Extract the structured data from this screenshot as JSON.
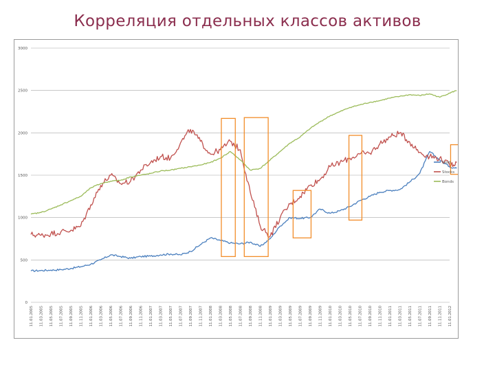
{
  "title": "Корреляция отдельных классов активов",
  "colors": {
    "gold": "#4a7fbe",
    "stocks": "#c0504d",
    "bonds": "#9bbb59",
    "highlight": "#f28c28",
    "grid": "#a6a6a6",
    "title": "#8b2e4e"
  },
  "chart_data": {
    "type": "line",
    "ylim": [
      0,
      3000
    ],
    "y_ticks": [
      "0",
      "500",
      "1000",
      "1500",
      "2000",
      "2500",
      "3000"
    ],
    "y_tick_values": [
      0,
      500,
      1000,
      1500,
      2000,
      2500,
      3000
    ],
    "grid": "horizontal",
    "legend_position": "right",
    "x_tick_labels": [
      "11.01.2005",
      "11.03.2005",
      "11.05.2005",
      "11.07.2005",
      "11.09.2005",
      "11.11.2005",
      "11.01.2006",
      "11.03.2006",
      "11.05.2006",
      "11.07.2006",
      "11.09.2006",
      "11.11.2006",
      "11.01.2007",
      "11.03.2007",
      "11.05.2007",
      "11.07.2007",
      "11.09.2007",
      "11.11.2007",
      "11.01.2008",
      "11.03.2008",
      "11.05.2008",
      "11.07.2008",
      "11.09.2008",
      "11.11.2008",
      "11.01.2009",
      "11.03.2009",
      "11.05.2009",
      "11.07.2009",
      "11.09.2009",
      "11.11.2009",
      "11.01.2010",
      "11.03.2010",
      "11.05.2010",
      "11.07.2010",
      "11.09.2010",
      "11.11.2010",
      "11.01.2011",
      "11.03.2011",
      "11.05.2011",
      "11.07.2011",
      "11.09.2011",
      "11.11.2011",
      "11.01.2012"
    ],
    "series": [
      {
        "name": "Gold",
        "color": "#4a7fbe",
        "values": [
          [
            0,
            370
          ],
          [
            1,
            375
          ],
          [
            2,
            380
          ],
          [
            3,
            385
          ],
          [
            4,
            400
          ],
          [
            5,
            420
          ],
          [
            6,
            450
          ],
          [
            7,
            500
          ],
          [
            8,
            560
          ],
          [
            9,
            540
          ],
          [
            10,
            520
          ],
          [
            11,
            540
          ],
          [
            12,
            545
          ],
          [
            13,
            560
          ],
          [
            14,
            570
          ],
          [
            15,
            560
          ],
          [
            16,
            600
          ],
          [
            17,
            680
          ],
          [
            18,
            760
          ],
          [
            19,
            730
          ],
          [
            20,
            700
          ],
          [
            21,
            690
          ],
          [
            22,
            710
          ],
          [
            23,
            660
          ],
          [
            24,
            750
          ],
          [
            25,
            900
          ],
          [
            26,
            1000
          ],
          [
            27,
            990
          ],
          [
            28,
            1000
          ],
          [
            29,
            1100
          ],
          [
            30,
            1050
          ],
          [
            31,
            1080
          ],
          [
            32,
            1130
          ],
          [
            33,
            1200
          ],
          [
            34,
            1250
          ],
          [
            35,
            1300
          ],
          [
            36,
            1320
          ],
          [
            37,
            1330
          ],
          [
            38,
            1420
          ],
          [
            39,
            1520
          ],
          [
            40,
            1780
          ],
          [
            41,
            1680
          ],
          [
            42,
            1600
          ],
          [
            42.7,
            1580
          ]
        ]
      },
      {
        "name": "Stocks",
        "color": "#c0504d",
        "values": [
          [
            0,
            800
          ],
          [
            1,
            790
          ],
          [
            2,
            810
          ],
          [
            3,
            830
          ],
          [
            4,
            850
          ],
          [
            5,
            900
          ],
          [
            6,
            1150
          ],
          [
            7,
            1380
          ],
          [
            8,
            1500
          ],
          [
            9,
            1400
          ],
          [
            10,
            1430
          ],
          [
            11,
            1560
          ],
          [
            12,
            1650
          ],
          [
            13,
            1720
          ],
          [
            14,
            1700
          ],
          [
            15,
            1880
          ],
          [
            16,
            2040
          ],
          [
            17,
            1900
          ],
          [
            18,
            1750
          ],
          [
            19,
            1800
          ],
          [
            20,
            1900
          ],
          [
            21,
            1800
          ],
          [
            22,
            1300
          ],
          [
            23,
            900
          ],
          [
            24,
            780
          ],
          [
            25,
            1000
          ],
          [
            26,
            1160
          ],
          [
            27,
            1250
          ],
          [
            28,
            1380
          ],
          [
            29,
            1450
          ],
          [
            30,
            1600
          ],
          [
            31,
            1650
          ],
          [
            32,
            1700
          ],
          [
            33,
            1750
          ],
          [
            34,
            1760
          ],
          [
            35,
            1870
          ],
          [
            36,
            1950
          ],
          [
            37,
            2000
          ],
          [
            38,
            1890
          ],
          [
            39,
            1770
          ],
          [
            40,
            1720
          ],
          [
            41,
            1700
          ],
          [
            42,
            1620
          ],
          [
            42.7,
            1650
          ]
        ]
      },
      {
        "name": "Bonds",
        "color": "#9bbb59",
        "values": [
          [
            0,
            1040
          ],
          [
            1,
            1060
          ],
          [
            2,
            1100
          ],
          [
            3,
            1150
          ],
          [
            4,
            1200
          ],
          [
            5,
            1250
          ],
          [
            6,
            1350
          ],
          [
            7,
            1400
          ],
          [
            8,
            1430
          ],
          [
            9,
            1440
          ],
          [
            10,
            1480
          ],
          [
            11,
            1500
          ],
          [
            12,
            1520
          ],
          [
            13,
            1550
          ],
          [
            14,
            1560
          ],
          [
            15,
            1580
          ],
          [
            16,
            1600
          ],
          [
            17,
            1620
          ],
          [
            18,
            1650
          ],
          [
            19,
            1700
          ],
          [
            20,
            1780
          ],
          [
            21,
            1680
          ],
          [
            22,
            1560
          ],
          [
            23,
            1580
          ],
          [
            24,
            1680
          ],
          [
            25,
            1780
          ],
          [
            26,
            1880
          ],
          [
            27,
            1950
          ],
          [
            28,
            2050
          ],
          [
            29,
            2130
          ],
          [
            30,
            2200
          ],
          [
            31,
            2250
          ],
          [
            32,
            2300
          ],
          [
            33,
            2330
          ],
          [
            34,
            2360
          ],
          [
            35,
            2380
          ],
          [
            36,
            2410
          ],
          [
            37,
            2430
          ],
          [
            38,
            2450
          ],
          [
            39,
            2440
          ],
          [
            40,
            2460
          ],
          [
            41,
            2420
          ],
          [
            42,
            2470
          ],
          [
            42.7,
            2500
          ]
        ]
      }
    ],
    "highlight_ranges": [
      {
        "x": [
          19.1,
          20.5
        ],
        "y": [
          540,
          2170
        ]
      },
      {
        "x": [
          21.4,
          23.8
        ],
        "y": [
          540,
          2180
        ]
      },
      {
        "x": [
          26.3,
          28.1
        ],
        "y": [
          760,
          1320
        ]
      },
      {
        "x": [
          31.9,
          33.2
        ],
        "y": [
          970,
          1970
        ]
      },
      {
        "x": [
          42.1,
          43.0
        ],
        "y": [
          1510,
          1860
        ]
      }
    ]
  }
}
